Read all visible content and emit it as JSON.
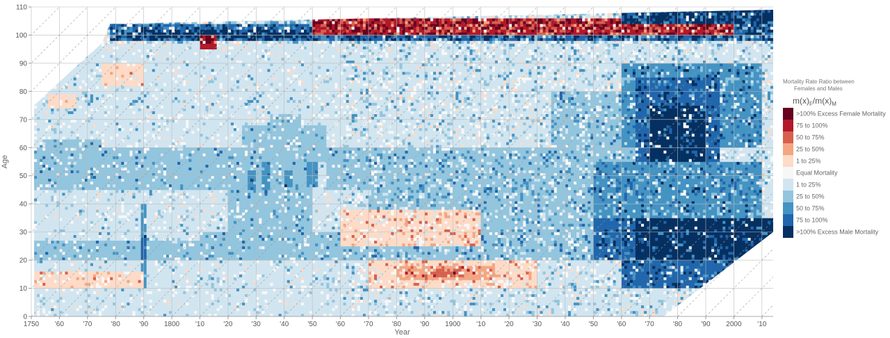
{
  "chart_data": {
    "type": "heatmap",
    "xlabel": "Year",
    "ylabel": "Age",
    "xlim": [
      1750,
      2014
    ],
    "ylim": [
      0,
      110
    ],
    "x_ticks": [
      {
        "value": 1750,
        "label": "1750"
      },
      {
        "value": 1760,
        "label": "'60"
      },
      {
        "value": 1770,
        "label": "'70"
      },
      {
        "value": 1780,
        "label": "'80"
      },
      {
        "value": 1790,
        "label": "'90"
      },
      {
        "value": 1800,
        "label": "1800"
      },
      {
        "value": 1810,
        "label": "'10"
      },
      {
        "value": 1820,
        "label": "'20"
      },
      {
        "value": 1830,
        "label": "'30"
      },
      {
        "value": 1840,
        "label": "'40"
      },
      {
        "value": 1850,
        "label": "'50"
      },
      {
        "value": 1860,
        "label": "'60"
      },
      {
        "value": 1870,
        "label": "'70"
      },
      {
        "value": 1880,
        "label": "'80"
      },
      {
        "value": 1890,
        "label": "'90"
      },
      {
        "value": 1900,
        "label": "1900"
      },
      {
        "value": 1910,
        "label": "'10"
      },
      {
        "value": 1920,
        "label": "'20"
      },
      {
        "value": 1930,
        "label": "'30"
      },
      {
        "value": 1940,
        "label": "'40"
      },
      {
        "value": 1950,
        "label": "'50"
      },
      {
        "value": 1960,
        "label": "'60"
      },
      {
        "value": 1970,
        "label": "'70"
      },
      {
        "value": 1980,
        "label": "'80"
      },
      {
        "value": 1990,
        "label": "'90"
      },
      {
        "value": 2000,
        "label": "2000"
      },
      {
        "value": 2010,
        "label": "'10"
      }
    ],
    "y_ticks": [
      {
        "value": 0,
        "label": "0"
      },
      {
        "value": 10,
        "label": "10"
      },
      {
        "value": 20,
        "label": "20"
      },
      {
        "value": 30,
        "label": "30"
      },
      {
        "value": 40,
        "label": "40"
      },
      {
        "value": 50,
        "label": "50"
      },
      {
        "value": 60,
        "label": "60"
      },
      {
        "value": 70,
        "label": "70"
      },
      {
        "value": 80,
        "label": "80"
      },
      {
        "value": 90,
        "label": "90"
      },
      {
        "value": 100,
        "label": "100"
      },
      {
        "value": 110,
        "label": "110"
      }
    ],
    "grid": true,
    "cohort_diagonals": true,
    "coverage": [
      {
        "year": 1751,
        "max_age": 75
      },
      {
        "year": 1765,
        "max_age": 88
      },
      {
        "year": 1775,
        "max_age": 97
      },
      {
        "year": 1778,
        "max_age": 104
      },
      {
        "year": 2014,
        "max_age": 109
      }
    ],
    "coverage_lower_right": [
      {
        "year": 1975,
        "min_age": 0
      },
      {
        "year": 2014,
        "min_age": 30
      }
    ],
    "legend": {
      "title_line1": "Mortality Rate Ratio between",
      "title_line2": "Females and Males",
      "formula": "m(x)F / m(x)M",
      "placement": "right",
      "items": [
        {
          "label": ">100% Excess Female Mortality",
          "color": "#67001f"
        },
        {
          "label": "75 to 100%",
          "color": "#b2182b"
        },
        {
          "label": "50 to 75%",
          "color": "#d6604d"
        },
        {
          "label": "25 to 50%",
          "color": "#f4a582"
        },
        {
          "label": "1 to 25%",
          "color": "#fddbc7"
        },
        {
          "label": "Equal Mortality",
          "color": "#f7f7f7"
        },
        {
          "label": "1 to 25%",
          "color": "#d1e5f0"
        },
        {
          "label": "25 to 50%",
          "color": "#92c5de"
        },
        {
          "label": "50 to 75%",
          "color": "#4393c3"
        },
        {
          "label": "75 to 100%",
          "color": "#2166ac"
        },
        {
          "label": ">100% Excess Male Mortality",
          "color": "#053061"
        }
      ]
    },
    "scale": {
      "classes": [
        "f100",
        "f75",
        "f50",
        "f25",
        "f1",
        "eq",
        "m1",
        "m25",
        "m50",
        "m75",
        "m100"
      ],
      "colors": [
        "#67001f",
        "#b2182b",
        "#d6604d",
        "#f4a582",
        "#fddbc7",
        "#f7f7f7",
        "#d1e5f0",
        "#92c5de",
        "#4393c3",
        "#2166ac",
        "#053061"
      ],
      "background_class": "m1",
      "note": "class index: 0-4 excess female, 5 equal, 6-10 excess male"
    },
    "regions": [
      {
        "x": [
          1751,
          1850
        ],
        "y": [
          45,
          60
        ],
        "class": 7
      },
      {
        "x": [
          1755,
          1775
        ],
        "y": [
          60,
          63
        ],
        "class": 7
      },
      {
        "x": [
          1751,
          1790
        ],
        "y": [
          20,
          27
        ],
        "class": 7
      },
      {
        "x": [
          1790,
          1810
        ],
        "y": [
          20,
          27
        ],
        "class": 7
      },
      {
        "x": [
          1810,
          1860
        ],
        "y": [
          20,
          30
        ],
        "class": 7
      },
      {
        "x": [
          1820,
          1850
        ],
        "y": [
          30,
          55
        ],
        "class": 7
      },
      {
        "x": [
          1825,
          1855
        ],
        "y": [
          55,
          68
        ],
        "class": 7
      },
      {
        "x": [
          1835,
          1846
        ],
        "y": [
          68,
          72
        ],
        "class": 7
      },
      {
        "x": [
          1855,
          1870
        ],
        "y": [
          45,
          60
        ],
        "class": 7
      },
      {
        "x": [
          1827,
          1830
        ],
        "y": [
          45,
          52
        ],
        "class": 8
      },
      {
        "x": [
          1832,
          1835
        ],
        "y": [
          45,
          55
        ],
        "class": 8
      },
      {
        "x": [
          1840,
          1843
        ],
        "y": [
          46,
          52
        ],
        "class": 8
      },
      {
        "x": [
          1848,
          1852
        ],
        "y": [
          46,
          55
        ],
        "class": 8
      },
      {
        "x": [
          1789,
          1791
        ],
        "y": [
          10,
          40
        ],
        "class": 8
      },
      {
        "x": [
          1789,
          1791
        ],
        "y": [
          20,
          28
        ],
        "class": 9
      },
      {
        "x": [
          1870,
          1950
        ],
        "y": [
          38,
          60
        ],
        "class": 7
      },
      {
        "x": [
          1860,
          1950
        ],
        "y": [
          20,
          38
        ],
        "class": 7
      },
      {
        "x": [
          1930,
          1970
        ],
        "y": [
          20,
          60
        ],
        "class": 7
      },
      {
        "x": [
          1935,
          1960
        ],
        "y": [
          60,
          80
        ],
        "class": 7
      },
      {
        "x": [
          1960,
          2010
        ],
        "y": [
          60,
          90
        ],
        "class": 8
      },
      {
        "x": [
          1965,
          1995
        ],
        "y": [
          55,
          85
        ],
        "class": 9
      },
      {
        "x": [
          1970,
          1990
        ],
        "y": [
          55,
          75
        ],
        "class": 10
      },
      {
        "x": [
          1950,
          2010
        ],
        "y": [
          35,
          55
        ],
        "class": 8
      },
      {
        "x": [
          1950,
          1975
        ],
        "y": [
          20,
          35
        ],
        "class": 9
      },
      {
        "x": [
          1965,
          2014
        ],
        "y": [
          20,
          35
        ],
        "class": 10
      },
      {
        "x": [
          1960,
          2000
        ],
        "y": [
          10,
          20
        ],
        "class": 9
      },
      {
        "x": [
          1870,
          1930
        ],
        "y": [
          10,
          20
        ],
        "class": 4
      },
      {
        "x": [
          1880,
          1915
        ],
        "y": [
          13,
          18
        ],
        "class": 3
      },
      {
        "x": [
          1893,
          1903
        ],
        "y": [
          14,
          17
        ],
        "class": 2
      },
      {
        "x": [
          1860,
          1910
        ],
        "y": [
          25,
          38
        ],
        "class": 4
      },
      {
        "x": [
          1751,
          1790
        ],
        "y": [
          10,
          16
        ],
        "class": 4
      },
      {
        "x": [
          1756,
          1766
        ],
        "y": [
          74,
          79
        ],
        "class": 4
      },
      {
        "x": [
          1775,
          1790
        ],
        "y": [
          82,
          90
        ],
        "class": 4
      },
      {
        "x": [
          1778,
          2014
        ],
        "y": [
          98,
          104
        ],
        "class": 9
      },
      {
        "x": [
          1790,
          1850
        ],
        "y": [
          99,
          102
        ],
        "class": 10
      },
      {
        "x": [
          1810,
          1816
        ],
        "y": [
          95,
          100
        ],
        "class": 1
      },
      {
        "x": [
          1850,
          2000
        ],
        "y": [
          100,
          106
        ],
        "class": 1
      },
      {
        "x": [
          1960,
          2014
        ],
        "y": [
          104,
          109
        ],
        "class": 10
      }
    ]
  }
}
